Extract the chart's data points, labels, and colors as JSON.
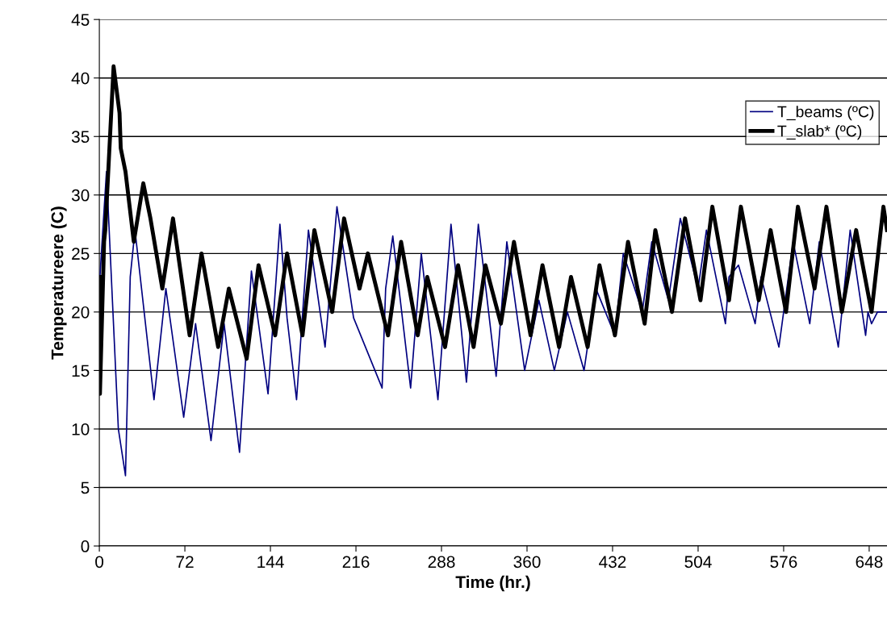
{
  "chart_data": {
    "type": "line",
    "xlabel": "Time (hr.)",
    "ylabel": "Temperatureere (C)",
    "xlim": [
      0,
      663
    ],
    "xticks": [
      0,
      72,
      144,
      216,
      288,
      360,
      432,
      504,
      576,
      648
    ],
    "ylim": [
      0,
      45
    ],
    "yticks": [
      0,
      5,
      10,
      15,
      20,
      25,
      30,
      35,
      40,
      45
    ],
    "grid": "y",
    "legend": "top right",
    "marker": "none",
    "line_style": "solid",
    "series": [
      {
        "name": "T_beams (ºC)",
        "color": "#000080",
        "x": [
          0.5,
          2,
          6,
          16,
          22,
          26,
          30,
          46,
          56,
          71,
          81,
          94,
          105,
          118,
          128,
          142,
          152,
          158,
          166,
          176,
          190,
          200,
          214,
          238,
          241,
          247,
          262,
          271,
          285,
          296,
          309,
          319,
          334,
          343,
          358,
          370,
          383,
          394,
          408,
          418,
          434,
          441,
          457,
          465,
          479,
          489,
          504,
          511,
          527,
          530,
          538,
          552,
          557,
          572,
          584,
          598,
          606,
          622,
          632,
          645,
          647,
          650,
          655,
          663
        ],
        "values": [
          23,
          25.5,
          32,
          10,
          6,
          23,
          27,
          12.5,
          22,
          11,
          19,
          9,
          19,
          8,
          23.5,
          13,
          27.5,
          19.5,
          12.5,
          27,
          17,
          29,
          19.5,
          13.5,
          22,
          26.5,
          13.5,
          25,
          12.5,
          27.5,
          14,
          27.5,
          14.5,
          26,
          15,
          21,
          15,
          20,
          15,
          22,
          18,
          25,
          20,
          26,
          21,
          28,
          22,
          27,
          19,
          23,
          24,
          19,
          23,
          17,
          26,
          19,
          26,
          17,
          27,
          18,
          20,
          19,
          20,
          20
        ]
      },
      {
        "name": "T_slab* (ºC)",
        "color": "#000000",
        "x": [
          0,
          0.5,
          4,
          5,
          12,
          17,
          18,
          22,
          29,
          37,
          43,
          53,
          62,
          76,
          86,
          100,
          109,
          124,
          134,
          148,
          158,
          171,
          181,
          196,
          206,
          219,
          226,
          243,
          254,
          268,
          276,
          291,
          302,
          315,
          325,
          338,
          349,
          363,
          373,
          387,
          397,
          411,
          421,
          434,
          445,
          459,
          468,
          482,
          493,
          506,
          516,
          530,
          540,
          555,
          565,
          578,
          588,
          602,
          612,
          625,
          637,
          650,
          660,
          663
        ],
        "values": [
          23,
          13,
          26,
          27,
          41,
          37,
          34,
          32,
          26,
          31,
          28,
          22,
          28,
          18,
          25,
          17,
          22,
          16,
          24,
          18,
          25,
          18,
          27,
          20,
          28,
          22,
          25,
          18,
          26,
          18,
          23,
          17,
          24,
          17,
          24,
          19,
          26,
          18,
          24,
          17,
          23,
          17,
          24,
          18,
          26,
          19,
          27,
          20,
          28,
          21,
          29,
          21,
          29,
          21,
          27,
          20,
          29,
          22,
          29,
          20,
          27,
          20,
          29,
          27
        ]
      }
    ]
  }
}
